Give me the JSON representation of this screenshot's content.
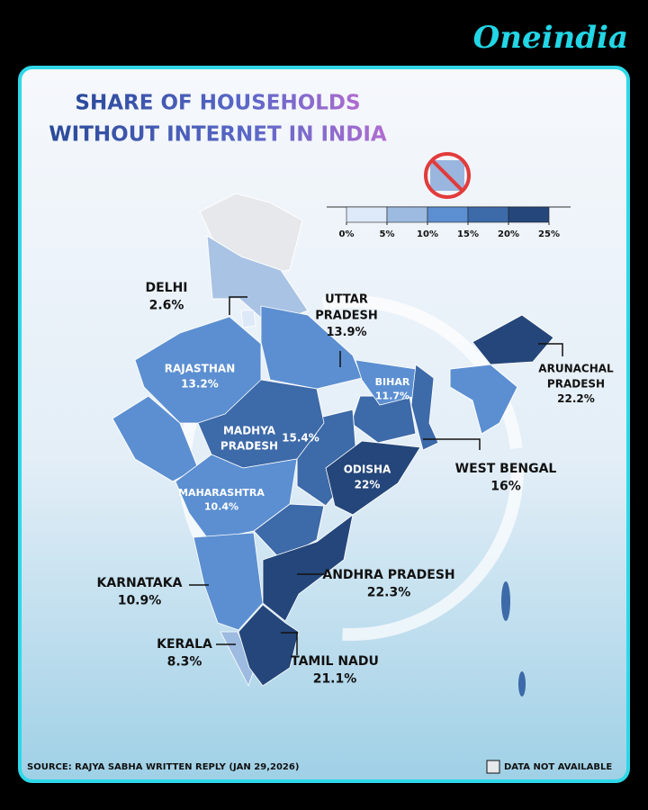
{
  "brand": "Oneindia",
  "title": {
    "line1": "SHARE OF HOUSEHOLDS",
    "line2": "WITHOUT INTERNET IN INDIA"
  },
  "legend": {
    "colors": [
      "#dde9f8",
      "#9dbbe0",
      "#5c8fd1",
      "#3d6aa8",
      "#24467a"
    ],
    "ticks": [
      {
        "value": 0,
        "label": "0%"
      },
      {
        "value": 5,
        "label": "5%"
      },
      {
        "value": 10,
        "label": "10%"
      },
      {
        "value": 15,
        "label": "15%"
      },
      {
        "value": 20,
        "label": "20%"
      },
      {
        "value": 25,
        "label": "25%"
      }
    ]
  },
  "states": [
    {
      "name": [
        "DELHI"
      ],
      "value": 2.6,
      "label": "2.6%"
    },
    {
      "name": [
        "UTTAR",
        "PRADESH"
      ],
      "value": 13.9,
      "label": "13.9%"
    },
    {
      "name": [
        "RAJASTHAN"
      ],
      "value": 13.2,
      "label": "13.2%"
    },
    {
      "name": [
        "BIHAR"
      ],
      "value": 11.7,
      "label": "11.7%"
    },
    {
      "name": [
        "MADHYA",
        "PRADESH"
      ],
      "value": 15.4,
      "label": "15.4%"
    },
    {
      "name": [
        "ODISHA"
      ],
      "value": 22,
      "label": "22%"
    },
    {
      "name": [
        "WEST BENGAL"
      ],
      "value": 16,
      "label": "16%"
    },
    {
      "name": [
        "ARUNACHAL",
        "PRADESH"
      ],
      "value": 22.2,
      "label": "22.2%"
    },
    {
      "name": [
        "MAHARASHTRA"
      ],
      "value": 10.4,
      "label": "10.4%"
    },
    {
      "name": [
        "KARNATAKA"
      ],
      "value": 10.9,
      "label": "10.9%"
    },
    {
      "name": [
        "ANDHRA PRADESH"
      ],
      "value": 22.3,
      "label": "22.3%"
    },
    {
      "name": [
        "KERALA"
      ],
      "value": 8.3,
      "label": "8.3%"
    },
    {
      "name": [
        "TAMIL NADU"
      ],
      "value": 21.1,
      "label": "21.1%"
    }
  ],
  "footer": {
    "source": "SOURCE: RAJYA SABHA WRITTEN REPLY (JAN 29,2026)",
    "no_data": "DATA NOT AVAILABLE"
  }
}
